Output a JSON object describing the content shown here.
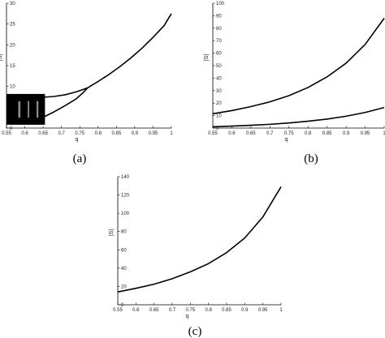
{
  "chart_data": [
    {
      "type": "line",
      "panel_label": "(a)",
      "xlabel": "q",
      "ylabel": "|S|",
      "xlim": [
        0.55,
        1
      ],
      "ylim": [
        0,
        30
      ],
      "xticks": [
        "0.55",
        "0.6",
        "0.65",
        "0.7",
        "0.75",
        "0.8",
        "0.85",
        "0.9",
        "0.95",
        "1"
      ],
      "yticks": [
        "0",
        "5",
        "10",
        "15",
        "20",
        "25",
        "30"
      ],
      "grid": false,
      "series": [
        {
          "x": [
            0.772,
            0.8,
            0.83,
            0.86,
            0.89,
            0.92,
            0.95,
            0.98,
            1.0
          ],
          "values": [
            9.7,
            11.2,
            12.9,
            14.8,
            16.9,
            19.2,
            21.8,
            24.6,
            27.5
          ]
        },
        {
          "x": [
            0.55,
            0.6,
            0.65,
            0.68,
            0.71,
            0.74,
            0.76,
            0.772
          ],
          "values": [
            6.2,
            6.8,
            7.4,
            7.6,
            8.0,
            8.7,
            9.3,
            9.7
          ]
        },
        {
          "x": [
            0.55,
            0.6,
            0.65,
            0.68,
            0.71,
            0.74,
            0.76,
            0.772
          ],
          "values": [
            1.2,
            1.4,
            2.6,
            3.9,
            5.4,
            7.0,
            8.6,
            9.7
          ]
        }
      ],
      "chaotic_band": {
        "x_range": [
          0.55,
          0.655
        ],
        "y_range": [
          0.8,
          8.2
        ]
      }
    },
    {
      "type": "line",
      "panel_label": "(b)",
      "xlabel": "q",
      "ylabel": "|S|",
      "xlim": [
        0.55,
        1
      ],
      "ylim": [
        0,
        100
      ],
      "xticks": [
        "0.55",
        "0.6",
        "0.65",
        "0.7",
        "0.75",
        "0.8",
        "0.85",
        "0.9",
        "0.95",
        "1"
      ],
      "yticks": [
        "0",
        "10",
        "20",
        "30",
        "40",
        "50",
        "60",
        "70",
        "80",
        "90",
        "100"
      ],
      "grid": false,
      "series": [
        {
          "x": [
            0.55,
            0.6,
            0.65,
            0.7,
            0.75,
            0.8,
            0.85,
            0.9,
            0.95,
            1.0
          ],
          "values": [
            11.5,
            14.0,
            17.2,
            21.0,
            26.0,
            32.5,
            41.0,
            52.0,
            67.0,
            88.0
          ]
        },
        {
          "x": [
            0.55,
            0.6,
            0.65,
            0.7,
            0.75,
            0.8,
            0.85,
            0.9,
            0.95,
            1.0
          ],
          "values": [
            1.0,
            1.6,
            2.2,
            3.0,
            4.1,
            5.5,
            7.2,
            9.5,
            12.5,
            16.5
          ]
        }
      ]
    },
    {
      "type": "line",
      "panel_label": "(c)",
      "xlabel": "q",
      "ylabel": "|S|",
      "xlim": [
        0.55,
        1
      ],
      "ylim": [
        0,
        140
      ],
      "xticks": [
        "0.55",
        "0.6",
        "0.65",
        "0.7",
        "0.75",
        "0.8",
        "0.85",
        "0.9",
        "0.95",
        "1"
      ],
      "yticks": [
        "0",
        "20",
        "40",
        "60",
        "80",
        "100",
        "120",
        "140"
      ],
      "grid": false,
      "series": [
        {
          "x": [
            0.55,
            0.6,
            0.65,
            0.7,
            0.75,
            0.8,
            0.85,
            0.9,
            0.95,
            1.0
          ],
          "values": [
            14.0,
            18.0,
            22.5,
            28.5,
            36.0,
            45.0,
            57.0,
            73.0,
            96.0,
            129.0
          ]
        }
      ]
    }
  ]
}
